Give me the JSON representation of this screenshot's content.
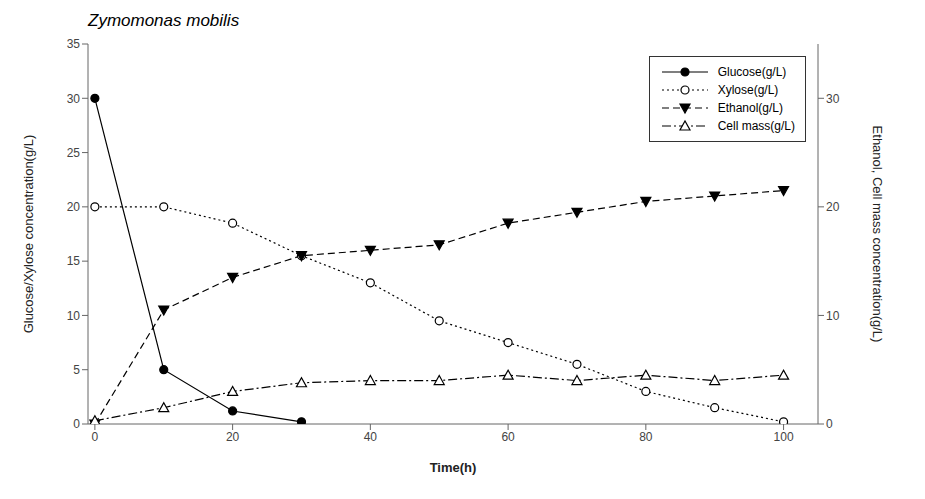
{
  "chart_data": {
    "type": "line",
    "title": "Zymomonas mobilis",
    "xlabel": "Time(h)",
    "ylabel": "Glucose/Xylose concentration(g/L)",
    "y2label": "Ethanol, Cell mass concentration(g/L)",
    "x": [
      0,
      10,
      20,
      30,
      40,
      50,
      60,
      70,
      80,
      90,
      100
    ],
    "xlim": [
      -1,
      105
    ],
    "xticks": [
      0,
      20,
      40,
      60,
      80,
      100
    ],
    "ylim": [
      0,
      35
    ],
    "yticks": [
      0,
      5,
      10,
      15,
      20,
      25,
      30,
      35
    ],
    "y2lim": [
      0,
      35
    ],
    "y2ticks": [
      0,
      10,
      20,
      30
    ],
    "grid": false,
    "legend": "upper right",
    "series": [
      {
        "name": "Glucose(g/L)",
        "color": "black",
        "marker": "filled_circle",
        "line_style": "solid",
        "values": [
          30,
          5,
          1.2,
          0.2,
          null,
          null,
          null,
          null,
          null,
          null,
          null
        ]
      },
      {
        "name": "Xylose(g/L)",
        "color": "black",
        "marker": "open_circle",
        "line_style": "dotted",
        "values": [
          20,
          20,
          18.5,
          15.5,
          13,
          9.5,
          7.5,
          5.5,
          3.0,
          1.5,
          0.2
        ]
      },
      {
        "name": "Ethanol(g/L)",
        "color": "black",
        "marker": "filled_triangle_down",
        "line_style": "dashed",
        "axis": "y2",
        "values": [
          0,
          10.5,
          13.5,
          15.5,
          16.0,
          16.5,
          18.5,
          19.5,
          20.5,
          21.0,
          21.5
        ]
      },
      {
        "name": "Cell mass(g/L)",
        "color": "black",
        "marker": "open_triangle_up",
        "line_style": "dashdot",
        "axis": "y2",
        "values": [
          0.3,
          1.5,
          3.0,
          3.8,
          4.0,
          4.0,
          4.5,
          4.0,
          4.5,
          4.0,
          4.5
        ]
      }
    ]
  }
}
